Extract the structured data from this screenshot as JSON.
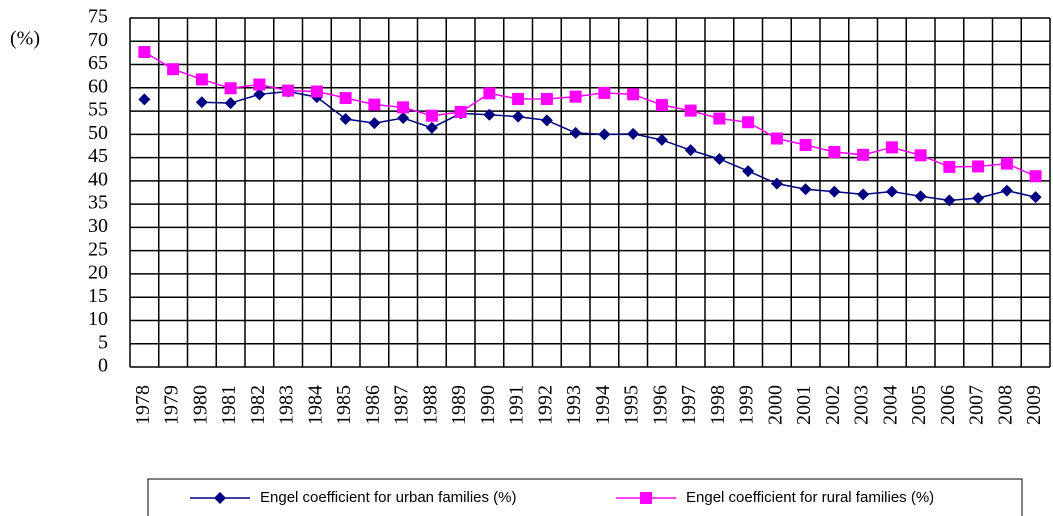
{
  "chart_data": {
    "type": "line",
    "y_label": "(%)",
    "categories": [
      "1978",
      "1979",
      "1980",
      "1981",
      "1982",
      "1983",
      "1984",
      "1985",
      "1986",
      "1987",
      "1988",
      "1989",
      "1990",
      "1991",
      "1992",
      "1993",
      "1994",
      "1995",
      "1996",
      "1997",
      "1998",
      "1999",
      "2000",
      "2001",
      "2002",
      "2003",
      "2004",
      "2005",
      "2006",
      "2007",
      "2008",
      "2009"
    ],
    "series": [
      {
        "name": "Engel coefficient for urban families (%)",
        "color": "#000080",
        "marker": "diamond",
        "values": [
          57.5,
          null,
          56.9,
          56.7,
          58.6,
          59.2,
          58.0,
          53.3,
          52.4,
          53.5,
          51.4,
          54.5,
          54.2,
          53.8,
          53.0,
          50.3,
          50.0,
          50.1,
          48.8,
          46.6,
          44.7,
          42.1,
          39.4,
          38.2,
          37.7,
          37.1,
          37.7,
          36.7,
          35.8,
          36.3,
          37.9,
          36.5
        ]
      },
      {
        "name": "Engel coefficient for rural families (%)",
        "color": "#ff00ff",
        "marker": "square",
        "values": [
          67.7,
          64.0,
          61.8,
          59.9,
          60.7,
          59.4,
          59.2,
          57.8,
          56.4,
          55.8,
          54.0,
          54.8,
          58.8,
          57.6,
          57.6,
          58.1,
          58.9,
          58.6,
          56.3,
          55.1,
          53.4,
          52.6,
          49.1,
          47.7,
          46.2,
          45.6,
          47.2,
          45.5,
          43.0,
          43.1,
          43.7,
          41.0
        ]
      }
    ],
    "ylim": [
      0,
      75
    ],
    "yticks": [
      0,
      5,
      10,
      15,
      20,
      25,
      30,
      35,
      40,
      45,
      50,
      55,
      60,
      65,
      70,
      75
    ],
    "grid": true
  }
}
